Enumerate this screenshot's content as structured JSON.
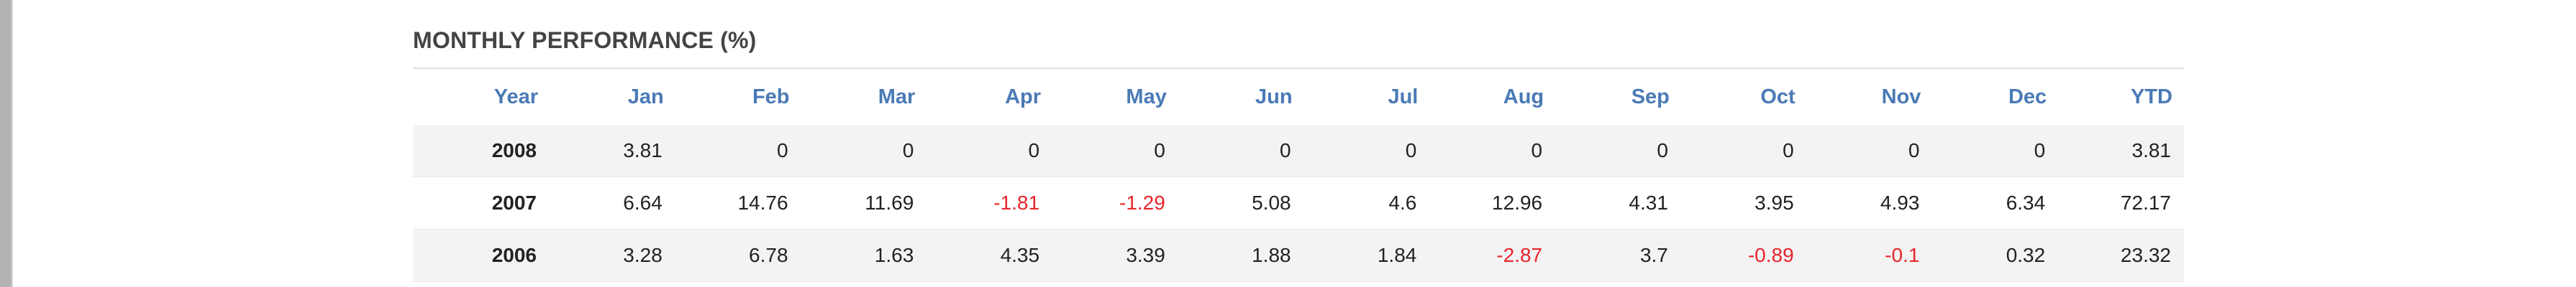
{
  "title": "MONTHLY PERFORMANCE (%)",
  "columns": [
    "Year",
    "Jan",
    "Feb",
    "Mar",
    "Apr",
    "May",
    "Jun",
    "Jul",
    "Aug",
    "Sep",
    "Oct",
    "Nov",
    "Dec",
    "YTD"
  ],
  "rows": [
    {
      "year": "2008",
      "values": [
        "3.81",
        "0",
        "0",
        "0",
        "0",
        "0",
        "0",
        "0",
        "0",
        "0",
        "0",
        "0",
        "3.81"
      ]
    },
    {
      "year": "2007",
      "values": [
        "6.64",
        "14.76",
        "11.69",
        "-1.81",
        "-1.29",
        "5.08",
        "4.6",
        "12.96",
        "4.31",
        "3.95",
        "4.93",
        "6.34",
        "72.17"
      ]
    },
    {
      "year": "2006",
      "values": [
        "3.28",
        "6.78",
        "1.63",
        "4.35",
        "3.39",
        "1.88",
        "1.84",
        "-2.87",
        "3.7",
        "-0.89",
        "-0.1",
        "0.32",
        "23.32"
      ]
    }
  ],
  "colors": {
    "header_text": "#4a7ab6",
    "negative": "#e8242a",
    "row_alt": "#f3f3f3"
  }
}
